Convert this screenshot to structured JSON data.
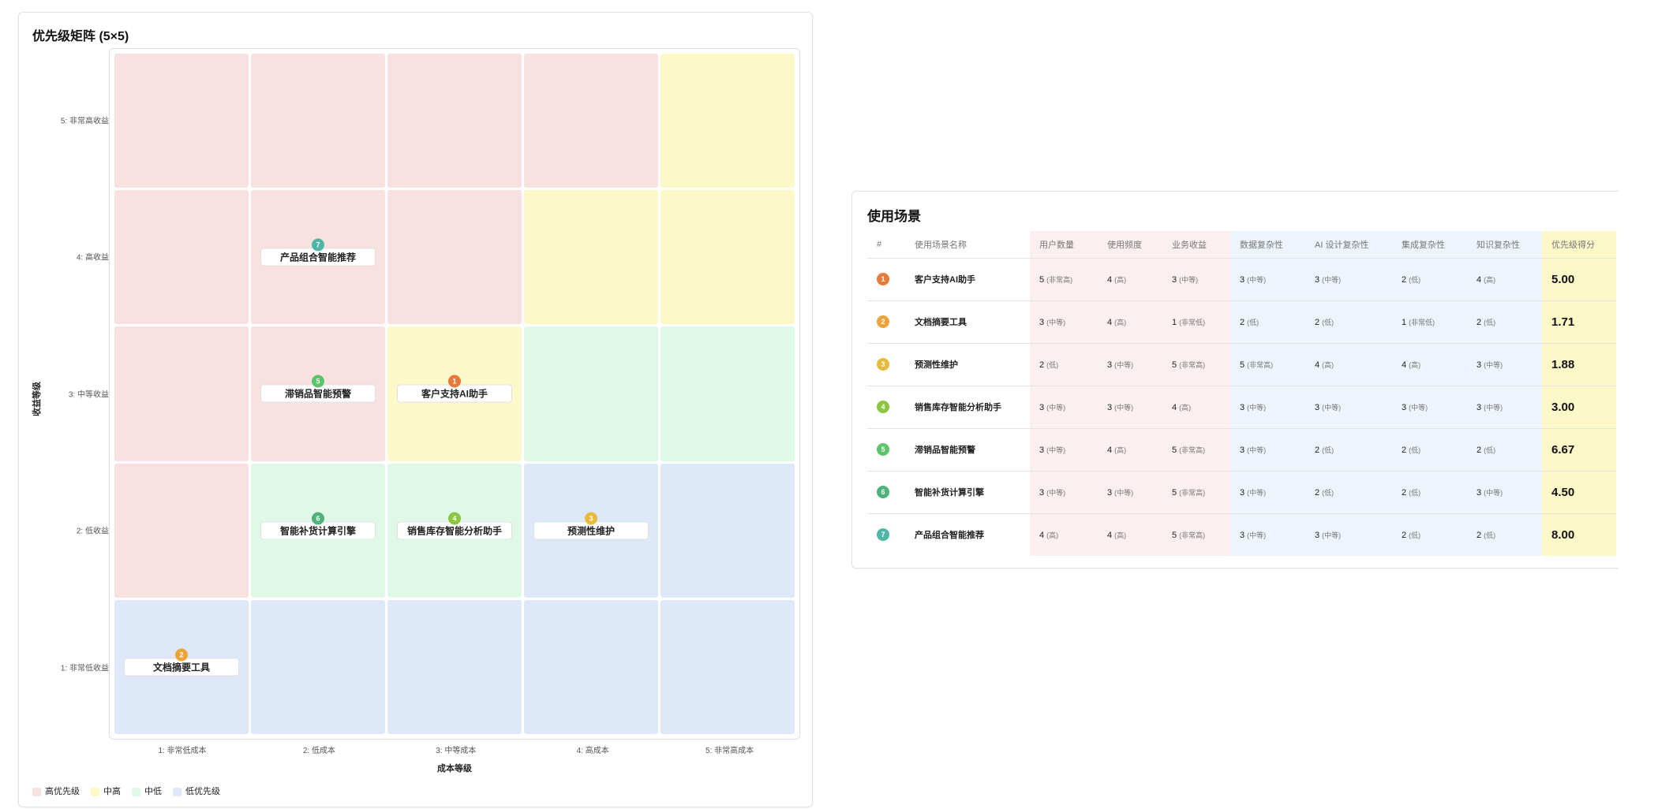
{
  "matrix": {
    "title": "优先级矩阵 (5×5)",
    "y_title": "收益等级",
    "x_title": "成本等级",
    "y_labels": [
      "5: 非常高收益",
      "4: 高收益",
      "3: 中等收益",
      "2: 低收益",
      "1: 非常低收益"
    ],
    "x_labels": [
      "1: 非常低成本",
      "2: 低成本",
      "3: 中等成本",
      "4: 高成本",
      "5: 非常高成本"
    ],
    "priority_colors": {
      "high": "#f7e1e1",
      "midhigh": "#fcf8c8",
      "midlow": "#e0f8e8",
      "low": "#dde8f8"
    },
    "cell_priority_rows_top_to_bottom": [
      [
        "high",
        "high",
        "high",
        "high",
        "midhigh"
      ],
      [
        "high",
        "high",
        "high",
        "midhigh",
        "midhigh"
      ],
      [
        "high",
        "high",
        "midhigh",
        "midlow",
        "midlow"
      ],
      [
        "high",
        "midlow",
        "midlow",
        "low",
        "low"
      ],
      [
        "low",
        "low",
        "low",
        "low",
        "low"
      ]
    ],
    "legend": [
      {
        "key": "high",
        "label": "高优先级"
      },
      {
        "key": "midhigh",
        "label": "中高"
      },
      {
        "key": "midlow",
        "label": "中低"
      },
      {
        "key": "low",
        "label": "低优先级"
      }
    ],
    "items": [
      {
        "id": "7",
        "name": "产品组合智能推荐",
        "cost": 2,
        "benefit": 4,
        "color": "#4fb5a5"
      },
      {
        "id": "5",
        "name": "滞销品智能预警",
        "cost": 2,
        "benefit": 3,
        "color": "#5cc46a"
      },
      {
        "id": "1",
        "name": "客户支持AI助手",
        "cost": 3,
        "benefit": 3,
        "color": "#e8793a"
      },
      {
        "id": "6",
        "name": "智能补货计算引擎",
        "cost": 2,
        "benefit": 2,
        "color": "#4db37a"
      },
      {
        "id": "4",
        "name": "销售库存智能分析助手",
        "cost": 3,
        "benefit": 2,
        "color": "#8cc63f"
      },
      {
        "id": "3",
        "name": "预测性维护",
        "cost": 4,
        "benefit": 2,
        "color": "#e8b93a"
      },
      {
        "id": "2",
        "name": "文档摘要工具",
        "cost": 1,
        "benefit": 1,
        "color": "#eea33a"
      }
    ]
  },
  "table": {
    "title": "使用场景",
    "headers": [
      "#",
      "使用场景名称",
      "用户数量",
      "使用频度",
      "业务收益",
      "数据复杂性",
      "AI 设计复杂性",
      "集成复杂性",
      "知识复杂性",
      "优先级得分"
    ],
    "rows": [
      {
        "id": "1",
        "color": "#e8793a",
        "name": "客户支持AI助手",
        "vals": [
          [
            "5",
            "(非常高)"
          ],
          [
            "4",
            "(高)"
          ],
          [
            "3",
            "(中等)"
          ],
          [
            "3",
            "(中等)"
          ],
          [
            "3",
            "(中等)"
          ],
          [
            "2",
            "(低)"
          ],
          [
            "4",
            "(高)"
          ]
        ],
        "score": "5.00"
      },
      {
        "id": "2",
        "color": "#eea33a",
        "name": "文档摘要工具",
        "vals": [
          [
            "3",
            "(中等)"
          ],
          [
            "4",
            "(高)"
          ],
          [
            "1",
            "(非常低)"
          ],
          [
            "2",
            "(低)"
          ],
          [
            "2",
            "(低)"
          ],
          [
            "1",
            "(非常低)"
          ],
          [
            "2",
            "(低)"
          ]
        ],
        "score": "1.71"
      },
      {
        "id": "3",
        "color": "#e8b93a",
        "name": "预测性维护",
        "vals": [
          [
            "2",
            "(低)"
          ],
          [
            "3",
            "(中等)"
          ],
          [
            "5",
            "(非常高)"
          ],
          [
            "5",
            "(非常高)"
          ],
          [
            "4",
            "(高)"
          ],
          [
            "4",
            "(高)"
          ],
          [
            "3",
            "(中等)"
          ]
        ],
        "score": "1.88"
      },
      {
        "id": "4",
        "color": "#8cc63f",
        "name": "销售库存智能分析助手",
        "vals": [
          [
            "3",
            "(中等)"
          ],
          [
            "3",
            "(中等)"
          ],
          [
            "4",
            "(高)"
          ],
          [
            "3",
            "(中等)"
          ],
          [
            "3",
            "(中等)"
          ],
          [
            "3",
            "(中等)"
          ],
          [
            "3",
            "(中等)"
          ]
        ],
        "score": "3.00"
      },
      {
        "id": "5",
        "color": "#5cc46a",
        "name": "滞销品智能预警",
        "vals": [
          [
            "3",
            "(中等)"
          ],
          [
            "4",
            "(高)"
          ],
          [
            "5",
            "(非常高)"
          ],
          [
            "3",
            "(中等)"
          ],
          [
            "2",
            "(低)"
          ],
          [
            "2",
            "(低)"
          ],
          [
            "2",
            "(低)"
          ]
        ],
        "score": "6.67"
      },
      {
        "id": "6",
        "color": "#4db37a",
        "name": "智能补货计算引擎",
        "vals": [
          [
            "3",
            "(中等)"
          ],
          [
            "3",
            "(中等)"
          ],
          [
            "5",
            "(非常高)"
          ],
          [
            "3",
            "(中等)"
          ],
          [
            "2",
            "(低)"
          ],
          [
            "2",
            "(低)"
          ],
          [
            "3",
            "(中等)"
          ]
        ],
        "score": "4.50"
      },
      {
        "id": "7",
        "color": "#4fb5a5",
        "name": "产品组合智能推荐",
        "vals": [
          [
            "4",
            "(高)"
          ],
          [
            "4",
            "(高)"
          ],
          [
            "5",
            "(非常高)"
          ],
          [
            "3",
            "(中等)"
          ],
          [
            "3",
            "(中等)"
          ],
          [
            "2",
            "(低)"
          ],
          [
            "2",
            "(低)"
          ]
        ],
        "score": "8.00"
      }
    ]
  }
}
